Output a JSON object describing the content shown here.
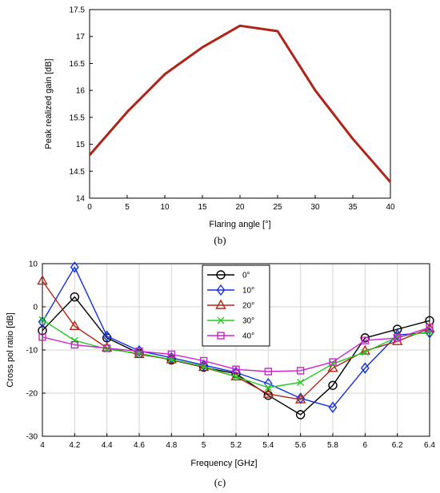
{
  "chart_data": [
    {
      "type": "line",
      "panel_label": "(b)",
      "xlabel": "Flaring angle [°]",
      "ylabel": "Peak realized gain [dB]",
      "xlim": [
        0,
        40
      ],
      "ylim": [
        14,
        17.5
      ],
      "xticks": [
        "0",
        "5",
        "10",
        "15",
        "20",
        "25",
        "30",
        "35",
        "40"
      ],
      "yticks": [
        "14",
        "14.5",
        "15",
        "15.5",
        "16",
        "16.5",
        "17",
        "17.5"
      ],
      "grid": false,
      "x": [
        0,
        5,
        10,
        15,
        20,
        25,
        30,
        35,
        40
      ],
      "series": [
        {
          "color": "#b02418",
          "values": [
            14.8,
            15.6,
            16.3,
            16.8,
            17.2,
            17.1,
            16.0,
            15.1,
            14.3
          ]
        }
      ]
    },
    {
      "type": "line",
      "panel_label": "(c)",
      "xlabel": "Frequency [GHz]",
      "ylabel": "Cross pol ratio [dB]",
      "xlim": [
        4,
        6.4
      ],
      "ylim": [
        -30,
        10
      ],
      "xticks": [
        "4",
        "4.2",
        "4.4",
        "4.6",
        "4.8",
        "5",
        "5.2",
        "5.4",
        "5.6",
        "5.8",
        "6",
        "6.2",
        "6.4"
      ],
      "yticks": [
        "-30",
        "-20",
        "-10",
        "0",
        "10"
      ],
      "grid": true,
      "legend": "top-center",
      "x": [
        4,
        4.2,
        4.4,
        4.6,
        4.8,
        5,
        5.2,
        5.4,
        5.6,
        5.8,
        6,
        6.2,
        6.4
      ],
      "series": [
        {
          "name": "0°",
          "color": "#000000",
          "marker": "circle",
          "values": [
            -5.5,
            2.3,
            -7.2,
            -10.8,
            -12.3,
            -14,
            -15.5,
            -20.5,
            -25,
            -18.2,
            -7.2,
            -5.2,
            -3.2
          ]
        },
        {
          "name": "10°",
          "color": "#1030e0",
          "marker": "diamond",
          "values": [
            -3.5,
            9.2,
            -6.8,
            -10.2,
            -11.8,
            -13.5,
            -15.2,
            -17.8,
            -21.2,
            -23.3,
            -14.2,
            -6.5,
            -6
          ]
        },
        {
          "name": "20°",
          "color": "#b02418",
          "marker": "triangle",
          "values": [
            6,
            -4.5,
            -9.5,
            -11,
            -12.2,
            -14,
            -16.2,
            -20.2,
            -21.5,
            -14.2,
            -10.2,
            -8,
            -5
          ]
        },
        {
          "name": "30°",
          "color": "#22cc22",
          "marker": "x",
          "values": [
            -3,
            -7.8,
            -9.8,
            -10.8,
            -12.2,
            -13.8,
            -16.2,
            -18.7,
            -17.5,
            -13.2,
            -10.5,
            -7,
            -5.8
          ]
        },
        {
          "name": "40°",
          "color": "#cc22cc",
          "marker": "square",
          "values": [
            -7,
            -8.8,
            -9.6,
            -10.3,
            -11,
            -12.5,
            -14.5,
            -15,
            -14.8,
            -12.8,
            -7.8,
            -7.2,
            -4.8
          ]
        }
      ]
    }
  ]
}
